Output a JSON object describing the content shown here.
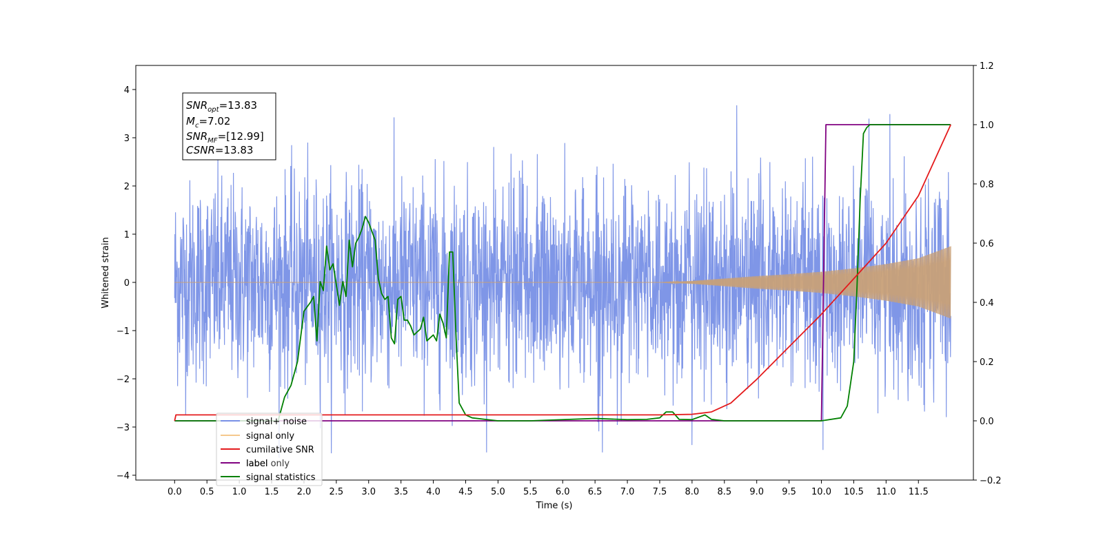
{
  "chart_data": {
    "type": "line",
    "xlabel": "Time (s)",
    "ylabel": "Whitened strain",
    "xlim": [
      -0.6,
      12.35
    ],
    "ylim": [
      -4.1,
      4.5
    ],
    "y2lim": [
      -0.2,
      1.2
    ],
    "x_ticks": [
      "0.0",
      "0.5",
      "1.0",
      "1.5",
      "2.0",
      "2.5",
      "3.0",
      "3.5",
      "4.0",
      "4.5",
      "5.0",
      "5.5",
      "6.0",
      "6.5",
      "7.0",
      "7.5",
      "8.0",
      "8.5",
      "9.0",
      "9.5",
      "10.0",
      "10.5",
      "11.0",
      "11.5"
    ],
    "y_ticks": [
      "4",
      "3",
      "2",
      "1",
      "0",
      "−1",
      "−2",
      "−3",
      "−4"
    ],
    "y2_ticks": [
      "1.2",
      "1.0",
      "0.8",
      "0.6",
      "0.4",
      "0.2",
      "0.0",
      "−0.2"
    ],
    "annotation": {
      "line1_base": "SNR",
      "line1_sub": "opt",
      "line1_value": "=13.83",
      "line2_base": "M",
      "line2_sub": "c",
      "line2_value": "=7.02",
      "line3_base": "SNR",
      "line3_sub": "MF",
      "line3_value": "=[12.99]",
      "line4_base": "CSNR",
      "line4_value": "=13.83"
    },
    "legend": {
      "location": "lower-left",
      "entries": [
        {
          "label": "signal+ noise",
          "color": "#7890e6"
        },
        {
          "label": "signal only",
          "color": "#f5c88c"
        },
        {
          "label": "cumilative SNR",
          "color": "#e41a1c"
        },
        {
          "label": "label",
          "color": "#800080"
        },
        {
          "label": "signal statistics",
          "color": "#008000"
        }
      ],
      "hidden_overlap_text": "label only"
    },
    "series": [
      {
        "name": "signal+ noise",
        "axis": "left",
        "kind": "noise",
        "color": "#7890e6",
        "x_start": 0.0,
        "x_end": 12.0,
        "typical_amplitude": 1.1,
        "max_peak": 4.1,
        "min_trough": -3.65
      },
      {
        "name": "signal only",
        "axis": "left",
        "kind": "chirp",
        "color": "#c8a078",
        "envelope_x": [
          0.0,
          7.5,
          8.0,
          8.5,
          9.0,
          9.5,
          10.0,
          10.5,
          11.0,
          11.5,
          12.0
        ],
        "envelope_y": [
          0.0,
          0.0,
          0.03,
          0.08,
          0.13,
          0.17,
          0.22,
          0.29,
          0.38,
          0.5,
          0.75
        ]
      },
      {
        "name": "cumilative SNR",
        "axis": "right",
        "color": "#e41a1c",
        "x": [
          0.0,
          0.02,
          7.5,
          8.0,
          8.3,
          8.6,
          9.0,
          9.5,
          10.0,
          10.5,
          11.0,
          11.5,
          12.0
        ],
        "y": [
          0.0,
          0.02,
          0.02,
          0.022,
          0.03,
          0.06,
          0.14,
          0.25,
          0.36,
          0.48,
          0.6,
          0.76,
          1.0
        ]
      },
      {
        "name": "label",
        "axis": "right",
        "color": "#800080",
        "x": [
          0.0,
          10.0,
          10.07,
          12.0
        ],
        "y": [
          0.0,
          0.0,
          1.0,
          1.0
        ]
      },
      {
        "name": "signal statistics",
        "axis": "right",
        "color": "#008000",
        "x": [
          0.0,
          1.6,
          1.7,
          1.8,
          1.9,
          2.0,
          2.1,
          2.15,
          2.2,
          2.25,
          2.3,
          2.35,
          2.4,
          2.45,
          2.5,
          2.55,
          2.6,
          2.65,
          2.7,
          2.75,
          2.8,
          2.85,
          2.9,
          2.95,
          3.0,
          3.05,
          3.1,
          3.15,
          3.2,
          3.25,
          3.3,
          3.35,
          3.4,
          3.45,
          3.5,
          3.55,
          3.6,
          3.65,
          3.7,
          3.75,
          3.8,
          3.85,
          3.9,
          3.95,
          4.0,
          4.05,
          4.1,
          4.15,
          4.2,
          4.25,
          4.3,
          4.35,
          4.4,
          4.5,
          4.6,
          4.8,
          5.0,
          5.5,
          6.0,
          6.5,
          7.0,
          7.3,
          7.5,
          7.6,
          7.7,
          7.8,
          8.0,
          8.2,
          8.3,
          8.5,
          9.0,
          9.5,
          10.0,
          10.3,
          10.4,
          10.5,
          10.55,
          10.6,
          10.65,
          10.7,
          10.75,
          10.8,
          10.9,
          11.0,
          11.5,
          12.0
        ],
        "y": [
          0.0,
          0.0,
          0.08,
          0.12,
          0.2,
          0.37,
          0.4,
          0.42,
          0.27,
          0.47,
          0.44,
          0.59,
          0.51,
          0.53,
          0.46,
          0.39,
          0.47,
          0.42,
          0.61,
          0.52,
          0.6,
          0.62,
          0.65,
          0.69,
          0.67,
          0.64,
          0.61,
          0.48,
          0.43,
          0.41,
          0.42,
          0.28,
          0.26,
          0.41,
          0.42,
          0.34,
          0.34,
          0.32,
          0.29,
          0.3,
          0.31,
          0.35,
          0.27,
          0.28,
          0.29,
          0.27,
          0.36,
          0.33,
          0.28,
          0.57,
          0.57,
          0.29,
          0.06,
          0.02,
          0.01,
          0.005,
          0.0,
          0.0,
          0.004,
          0.008,
          0.004,
          0.005,
          0.01,
          0.03,
          0.03,
          0.005,
          0.004,
          0.02,
          0.005,
          0.0,
          0.0,
          0.0,
          0.0,
          0.01,
          0.05,
          0.2,
          0.45,
          0.75,
          0.97,
          0.99,
          1.0,
          1.0,
          1.0,
          1.0,
          1.0,
          1.0
        ]
      }
    ]
  }
}
